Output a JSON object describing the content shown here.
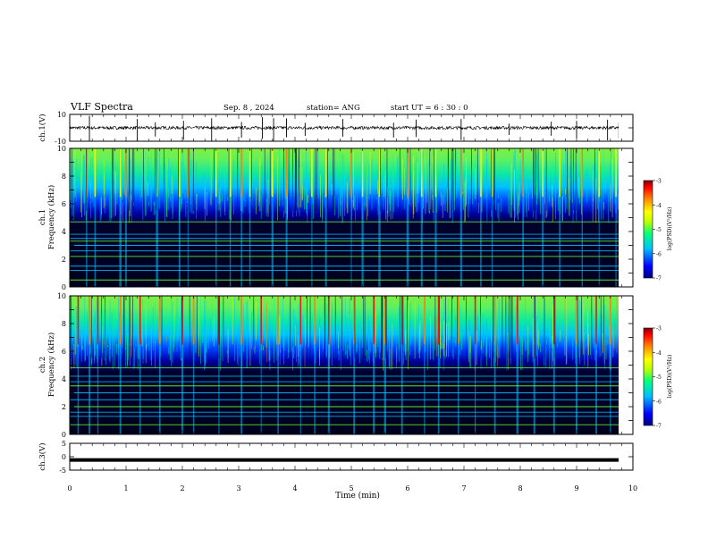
{
  "header": {
    "title": "VLF Spectra",
    "date": "Sep. 8 , 2024",
    "station": "station= ANG",
    "start": "start  UT =  6 : 30 : 0"
  },
  "colors": {
    "colormap": [
      "#00007f",
      "#0000ff",
      "#00bfff",
      "#00ff7f",
      "#bfff00",
      "#ffff00",
      "#ff8000",
      "#ff0000",
      "#7f0000"
    ],
    "background_dark": "#00001e",
    "line_green": "#66ff33"
  },
  "chart_data": [
    {
      "type": "line",
      "panel": "ch1-waveform",
      "ylabel": "ch.1(V)",
      "ylim": [
        -10,
        10
      ],
      "yticks": [
        "10",
        "-10"
      ],
      "xlim": [
        0,
        10
      ],
      "baseline": 0,
      "spikes_min": [
        0.35,
        1.2,
        1.52,
        2.02,
        2.52,
        3.05,
        3.42,
        3.62,
        3.85,
        4.18,
        4.85,
        5.75,
        6.15,
        6.95,
        7.8,
        8.55,
        9.0,
        9.55,
        9.75
      ]
    },
    {
      "type": "heatmap",
      "panel": "ch1-spectrogram",
      "ylabel": "ch.1\nFrequency (kHz)",
      "ylabel_line1": "ch.1",
      "ylabel_line2": "Frequency (kHz)",
      "ylim": [
        0,
        10
      ],
      "yticks": [
        "0",
        "2",
        "4",
        "6",
        "8",
        "10"
      ],
      "xlim": [
        0,
        10
      ],
      "z_label": "log(PSD)(V²/Hz)",
      "zlim": [
        -7,
        -3
      ],
      "zticks": [
        "-3",
        "-4",
        "-5",
        "-6",
        "-7"
      ],
      "horizontal_lines_khz": [
        0.5,
        1.2,
        1.5,
        2.2,
        2.6,
        3.0,
        3.3,
        3.5,
        3.8,
        4.7
      ],
      "sferic_times_min": [
        0.3,
        0.45,
        0.9,
        1.0,
        1.55,
        1.95,
        2.1,
        2.6,
        2.85,
        3.05,
        3.2,
        3.6,
        3.85,
        4.3,
        4.55,
        5.0,
        5.2,
        5.5,
        6.0,
        6.25,
        6.5,
        6.95,
        7.3,
        7.5,
        8.05,
        8.4,
        8.7,
        9.1,
        9.4,
        9.7
      ]
    },
    {
      "type": "heatmap",
      "panel": "ch2-spectrogram",
      "ylabel_line1": "ch.2",
      "ylabel_line2": "Frequency (kHz)",
      "ylim": [
        0,
        10
      ],
      "yticks": [
        "0",
        "2",
        "4",
        "6",
        "8",
        "10"
      ],
      "xlim": [
        0,
        10
      ],
      "z_label": "log(PSD)(V²/Hz)",
      "zlim": [
        -7,
        -3
      ],
      "zticks": [
        "-3",
        "-4",
        "-5",
        "-6",
        "-7"
      ],
      "horizontal_lines_khz": [
        0.7,
        1.3,
        1.6,
        2.0,
        2.5,
        3.0,
        3.5,
        3.8,
        4.2,
        4.8
      ],
      "sferic_times_min": [
        0.15,
        0.35,
        0.5,
        0.9,
        1.25,
        1.6,
        2.0,
        2.2,
        2.65,
        3.05,
        3.4,
        3.7,
        4.1,
        4.35,
        4.6,
        5.05,
        5.4,
        5.6,
        5.9,
        6.3,
        6.55,
        6.9,
        7.2,
        7.55,
        7.95,
        8.25,
        8.6,
        9.0,
        9.35,
        9.6
      ]
    },
    {
      "type": "line",
      "panel": "ch3-waveform",
      "ylabel": "ch.3(V)",
      "ylim": [
        -5,
        5
      ],
      "yticks": [
        "5",
        "0",
        "-5"
      ],
      "xlim": [
        0,
        10
      ],
      "value": -1.2
    }
  ],
  "xaxis": {
    "label": "Time (min)",
    "ticks": [
      "0",
      "1",
      "2",
      "3",
      "4",
      "5",
      "6",
      "7",
      "8",
      "9",
      "10"
    ]
  }
}
